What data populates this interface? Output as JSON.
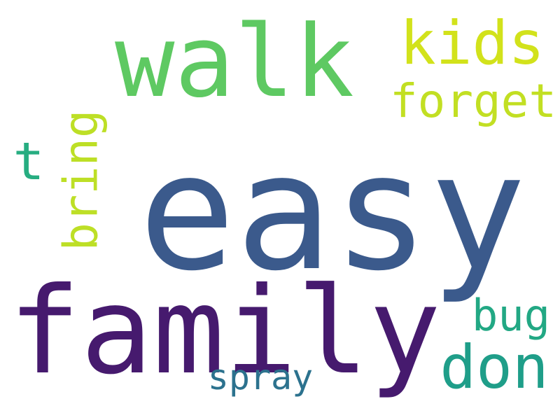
{
  "words": [
    {
      "key": "easy",
      "text": "easy",
      "color": "#3b5a8c"
    },
    {
      "key": "family",
      "text": "family",
      "color": "#461a6e"
    },
    {
      "key": "walk",
      "text": "walk",
      "color": "#5ec962"
    },
    {
      "key": "kids",
      "text": "kids",
      "color": "#d2e21b"
    },
    {
      "key": "forget",
      "text": "forget",
      "color": "#c2df23"
    },
    {
      "key": "t",
      "text": "t",
      "color": "#27ad81"
    },
    {
      "key": "bring",
      "text": "bring",
      "color": "#bddf26"
    },
    {
      "key": "bug",
      "text": "bug",
      "color": "#22a884"
    },
    {
      "key": "don",
      "text": "don",
      "color": "#1f9e89"
    },
    {
      "key": "spray",
      "text": "spray",
      "color": "#2c728e"
    }
  ]
}
